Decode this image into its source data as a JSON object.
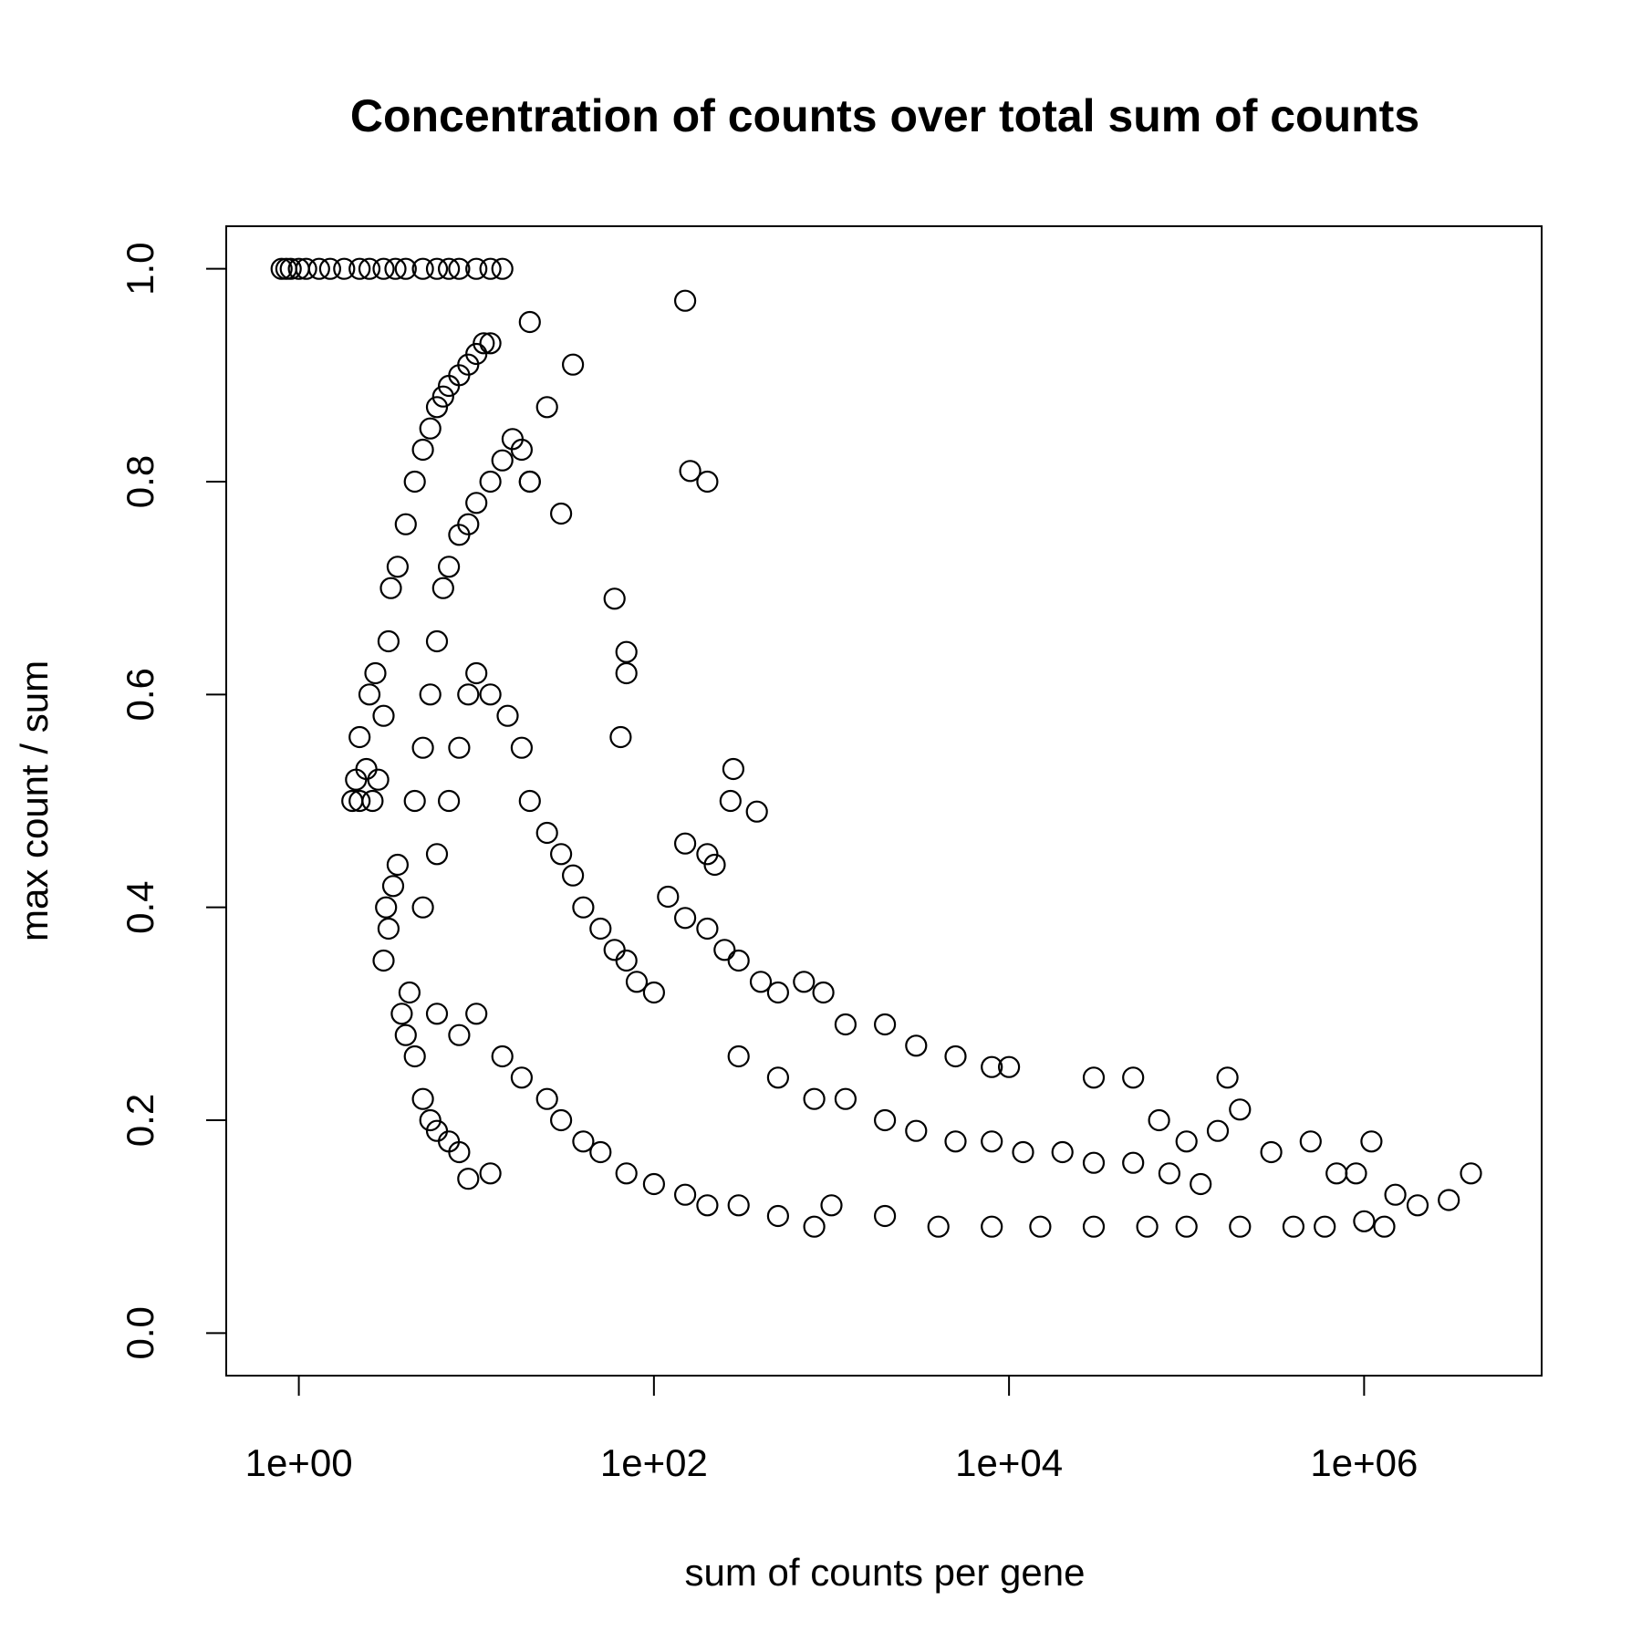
{
  "chart_data": {
    "type": "scatter",
    "title": "Concentration of counts over total sum of counts",
    "xlabel": "sum of counts per gene",
    "ylabel": "max count / sum",
    "x_scale": "log10",
    "xlim": [
      0.39,
      10000000
    ],
    "ylim": [
      -0.04,
      1.04
    ],
    "x_ticks": [
      1,
      100,
      10000,
      1000000
    ],
    "x_tick_labels": [
      "1e+00",
      "1e+02",
      "1e+04",
      "1e+06"
    ],
    "y_ticks": [
      0.0,
      0.2,
      0.4,
      0.6,
      0.8,
      1.0
    ],
    "y_tick_labels": [
      "0.0",
      "0.2",
      "0.4",
      "0.6",
      "0.8",
      "1.0"
    ],
    "grid": false,
    "marker": "open-circle",
    "series": [
      {
        "points": [
          [
            0.8,
            1.0
          ],
          [
            0.85,
            1.0
          ],
          [
            0.9,
            1.0
          ],
          [
            1.0,
            1.0
          ],
          [
            1.1,
            1.0
          ],
          [
            1.3,
            1.0
          ],
          [
            1.5,
            1.0
          ],
          [
            1.8,
            1.0
          ],
          [
            2.2,
            1.0
          ],
          [
            2.5,
            1.0
          ],
          [
            3.0,
            1.0
          ],
          [
            3.5,
            1.0
          ],
          [
            4.0,
            1.0
          ],
          [
            5.0,
            1.0
          ],
          [
            6.0,
            1.0
          ],
          [
            7.0,
            1.0
          ],
          [
            8.0,
            1.0
          ],
          [
            10.0,
            1.0
          ],
          [
            12.0,
            1.0
          ],
          [
            14.0,
            1.0
          ],
          [
            2.0,
            0.5
          ],
          [
            2.1,
            0.52
          ],
          [
            2.2,
            0.5
          ],
          [
            2.4,
            0.53
          ],
          [
            2.6,
            0.5
          ],
          [
            2.8,
            0.52
          ],
          [
            2.2,
            0.56
          ],
          [
            2.5,
            0.6
          ],
          [
            2.7,
            0.62
          ],
          [
            3.0,
            0.58
          ],
          [
            3.2,
            0.65
          ],
          [
            3.3,
            0.7
          ],
          [
            3.6,
            0.72
          ],
          [
            4.0,
            0.76
          ],
          [
            4.5,
            0.8
          ],
          [
            5.0,
            0.83
          ],
          [
            5.5,
            0.85
          ],
          [
            6.0,
            0.87
          ],
          [
            6.5,
            0.88
          ],
          [
            7.0,
            0.89
          ],
          [
            8.0,
            0.9
          ],
          [
            9.0,
            0.91
          ],
          [
            10.0,
            0.92
          ],
          [
            11.0,
            0.93
          ],
          [
            12.0,
            0.93
          ],
          [
            3.0,
            0.35
          ],
          [
            3.1,
            0.4
          ],
          [
            3.2,
            0.38
          ],
          [
            3.4,
            0.42
          ],
          [
            3.6,
            0.44
          ],
          [
            3.8,
            0.3
          ],
          [
            4.0,
            0.28
          ],
          [
            4.2,
            0.32
          ],
          [
            4.5,
            0.26
          ],
          [
            5.0,
            0.22
          ],
          [
            5.5,
            0.2
          ],
          [
            6.0,
            0.19
          ],
          [
            7.0,
            0.18
          ],
          [
            8.0,
            0.17
          ],
          [
            9.0,
            0.145
          ],
          [
            12.0,
            0.15
          ],
          [
            4.5,
            0.5
          ],
          [
            5.0,
            0.55
          ],
          [
            5.5,
            0.6
          ],
          [
            6.0,
            0.65
          ],
          [
            6.5,
            0.7
          ],
          [
            7.0,
            0.72
          ],
          [
            8.0,
            0.75
          ],
          [
            9.0,
            0.76
          ],
          [
            10.0,
            0.78
          ],
          [
            12.0,
            0.8
          ],
          [
            14.0,
            0.82
          ],
          [
            16.0,
            0.84
          ],
          [
            18.0,
            0.83
          ],
          [
            20.0,
            0.8
          ],
          [
            5.0,
            0.4
          ],
          [
            6.0,
            0.45
          ],
          [
            7.0,
            0.5
          ],
          [
            8.0,
            0.55
          ],
          [
            9.0,
            0.6
          ],
          [
            10.0,
            0.62
          ],
          [
            12.0,
            0.6
          ],
          [
            15.0,
            0.58
          ],
          [
            18.0,
            0.55
          ],
          [
            20.0,
            0.5
          ],
          [
            25.0,
            0.47
          ],
          [
            30.0,
            0.45
          ],
          [
            35.0,
            0.43
          ],
          [
            40.0,
            0.4
          ],
          [
            50.0,
            0.38
          ],
          [
            60.0,
            0.36
          ],
          [
            70.0,
            0.35
          ],
          [
            80.0,
            0.33
          ],
          [
            100.0,
            0.32
          ],
          [
            6.0,
            0.3
          ],
          [
            8.0,
            0.28
          ],
          [
            10.0,
            0.3
          ],
          [
            14.0,
            0.26
          ],
          [
            18.0,
            0.24
          ],
          [
            25.0,
            0.22
          ],
          [
            30.0,
            0.2
          ],
          [
            40.0,
            0.18
          ],
          [
            50.0,
            0.17
          ],
          [
            70.0,
            0.15
          ],
          [
            100.0,
            0.14
          ],
          [
            150.0,
            0.13
          ],
          [
            200.0,
            0.12
          ],
          [
            300.0,
            0.12
          ],
          [
            500.0,
            0.11
          ],
          [
            800.0,
            0.1
          ],
          [
            20.0,
            0.95
          ],
          [
            25.0,
            0.87
          ],
          [
            35.0,
            0.91
          ],
          [
            150.0,
            0.97
          ],
          [
            160.0,
            0.81
          ],
          [
            200.0,
            0.8
          ],
          [
            60.0,
            0.69
          ],
          [
            70.0,
            0.64
          ],
          [
            70.0,
            0.62
          ],
          [
            65.0,
            0.56
          ],
          [
            280.0,
            0.53
          ],
          [
            270.0,
            0.5
          ],
          [
            380.0,
            0.49
          ],
          [
            150.0,
            0.46
          ],
          [
            200.0,
            0.45
          ],
          [
            220.0,
            0.44
          ],
          [
            30.0,
            0.77
          ],
          [
            20.0,
            0.8
          ],
          [
            120.0,
            0.41
          ],
          [
            150.0,
            0.39
          ],
          [
            200.0,
            0.38
          ],
          [
            250.0,
            0.36
          ],
          [
            300.0,
            0.35
          ],
          [
            400.0,
            0.33
          ],
          [
            500.0,
            0.32
          ],
          [
            700.0,
            0.33
          ],
          [
            900.0,
            0.32
          ],
          [
            1200.0,
            0.29
          ],
          [
            2000.0,
            0.29
          ],
          [
            3000.0,
            0.27
          ],
          [
            5000.0,
            0.26
          ],
          [
            8000.0,
            0.25
          ],
          [
            10000.0,
            0.25
          ],
          [
            30000.0,
            0.24
          ],
          [
            50000.0,
            0.24
          ],
          [
            170000.0,
            0.24
          ],
          [
            300.0,
            0.26
          ],
          [
            500.0,
            0.24
          ],
          [
            800.0,
            0.22
          ],
          [
            1200.0,
            0.22
          ],
          [
            2000.0,
            0.2
          ],
          [
            3000.0,
            0.19
          ],
          [
            5000.0,
            0.18
          ],
          [
            8000.0,
            0.18
          ],
          [
            12000.0,
            0.17
          ],
          [
            20000.0,
            0.17
          ],
          [
            30000.0,
            0.16
          ],
          [
            50000.0,
            0.16
          ],
          [
            80000.0,
            0.15
          ],
          [
            120000.0,
            0.14
          ],
          [
            1000.0,
            0.12
          ],
          [
            2000.0,
            0.11
          ],
          [
            4000.0,
            0.1
          ],
          [
            8000.0,
            0.1
          ],
          [
            15000.0,
            0.1
          ],
          [
            30000.0,
            0.1
          ],
          [
            60000.0,
            0.1
          ],
          [
            100000.0,
            0.1
          ],
          [
            200000.0,
            0.1
          ],
          [
            400000.0,
            0.1
          ],
          [
            600000.0,
            0.1
          ],
          [
            1000000.0,
            0.105
          ],
          [
            70000.0,
            0.2
          ],
          [
            100000.0,
            0.18
          ],
          [
            150000.0,
            0.19
          ],
          [
            200000.0,
            0.21
          ],
          [
            300000.0,
            0.17
          ],
          [
            500000.0,
            0.18
          ],
          [
            700000.0,
            0.15
          ],
          [
            900000.0,
            0.15
          ],
          [
            1100000.0,
            0.18
          ],
          [
            1300000.0,
            0.1
          ],
          [
            1500000.0,
            0.13
          ],
          [
            2000000.0,
            0.12
          ],
          [
            3000000.0,
            0.125
          ],
          [
            4000000.0,
            0.15
          ]
        ]
      }
    ]
  }
}
